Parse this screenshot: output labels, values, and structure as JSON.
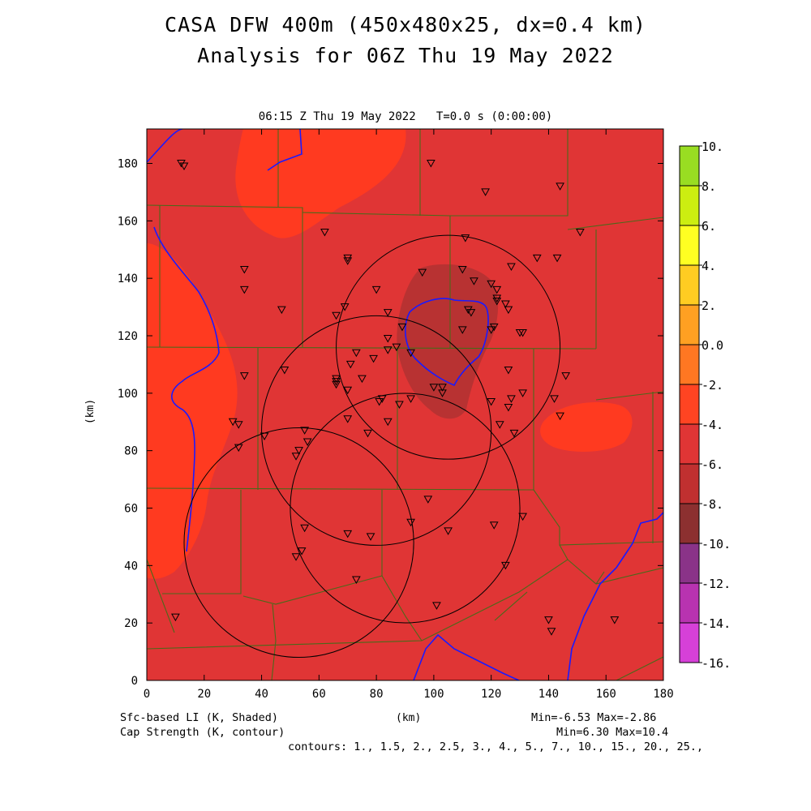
{
  "title_line1": "CASA DFW 400m (450x480x25, dx=0.4 km)",
  "title_line2": "Analysis for 06Z Thu 19 May 2022",
  "subtitle": "06:15 Z Thu 19 May 2022   T=0.0 s (0:00:00)",
  "x_axis_label": "(km)",
  "y_axis_label": "(km)",
  "x_ticks": [
    "0",
    "20",
    "40",
    "60",
    "80",
    "100",
    "120",
    "140",
    "160",
    "180"
  ],
  "y_ticks": [
    "0",
    "20",
    "40",
    "60",
    "80",
    "100",
    "120",
    "140",
    "160",
    "180"
  ],
  "footer": {
    "shaded_label": "Sfc-based LI (K, Shaded)",
    "contour_label": "Cap Strength (K, contour)",
    "shaded_range": "Min=-6.53 Max=-2.86",
    "contour_range": "Min=6.30 Max=10.4",
    "contours": "contours: 1., 1.5, 2., 2.5, 3., 4., 5., 7., 10., 15., 20., 25.,"
  },
  "colorbar": {
    "labels": [
      "10.",
      "8.",
      "6.",
      "4.",
      "2.",
      "0.0",
      "-2.",
      "-4.",
      "-6.",
      "-8.",
      "-10.",
      "-12.",
      "-14.",
      "-16."
    ],
    "colors": [
      "#99dd22",
      "#ccee11",
      "#ffff22",
      "#ffcc22",
      "#ffa022",
      "#ff7722",
      "#ff4422",
      "#e03535",
      "#c03030",
      "#8c3030",
      "#8a3388",
      "#b833b0",
      "#d640d8"
    ]
  },
  "map": {
    "x_range_km": [
      0,
      180
    ],
    "y_range_km": [
      0,
      192
    ],
    "background_color": "#e03535",
    "warm_region_color": "#ff3a20",
    "min_region_color": "#b83232",
    "county_line_color": "#4a6a1a",
    "river_color": "#1a1aff",
    "radar_rings_km": [
      {
        "cx": 105,
        "cy": 116,
        "r": 39
      },
      {
        "cx": 80,
        "cy": 87,
        "r": 40
      },
      {
        "cx": 90,
        "cy": 60,
        "r": 40
      },
      {
        "cx": 53,
        "cy": 48,
        "r": 40
      }
    ],
    "stations_km": [
      [
        12,
        180
      ],
      [
        13,
        179
      ],
      [
        99,
        180
      ],
      [
        118,
        170
      ],
      [
        144,
        172
      ],
      [
        151,
        156
      ],
      [
        62,
        156
      ],
      [
        111,
        154
      ],
      [
        70,
        147
      ],
      [
        70,
        146
      ],
      [
        34,
        143
      ],
      [
        34,
        136
      ],
      [
        110,
        143
      ],
      [
        96,
        142
      ],
      [
        127,
        144
      ],
      [
        136,
        147
      ],
      [
        143,
        147
      ],
      [
        114,
        139
      ],
      [
        120,
        138
      ],
      [
        122,
        136
      ],
      [
        122,
        133
      ],
      [
        122,
        132
      ],
      [
        80,
        136
      ],
      [
        69,
        130
      ],
      [
        47,
        129
      ],
      [
        66,
        127
      ],
      [
        84,
        128
      ],
      [
        112,
        129
      ],
      [
        113,
        128
      ],
      [
        125,
        131
      ],
      [
        126,
        129
      ],
      [
        110,
        122
      ],
      [
        120,
        122
      ],
      [
        121,
        123
      ],
      [
        130,
        121
      ],
      [
        131,
        121
      ],
      [
        89,
        123
      ],
      [
        84,
        119
      ],
      [
        87,
        116
      ],
      [
        84,
        115
      ],
      [
        92,
        114
      ],
      [
        79,
        112
      ],
      [
        73,
        114
      ],
      [
        34,
        106
      ],
      [
        48,
        108
      ],
      [
        66,
        105
      ],
      [
        66,
        103
      ],
      [
        71,
        110
      ],
      [
        66,
        104
      ],
      [
        70,
        101
      ],
      [
        75,
        105
      ],
      [
        100,
        102
      ],
      [
        103,
        102
      ],
      [
        103,
        100
      ],
      [
        82,
        98
      ],
      [
        81,
        97
      ],
      [
        92,
        98
      ],
      [
        88,
        96
      ],
      [
        126,
        108
      ],
      [
        131,
        100
      ],
      [
        127,
        98
      ],
      [
        126,
        95
      ],
      [
        120,
        97
      ],
      [
        142,
        98
      ],
      [
        146,
        106
      ],
      [
        144,
        92
      ],
      [
        30,
        90
      ],
      [
        32,
        89
      ],
      [
        32,
        81
      ],
      [
        70,
        91
      ],
      [
        77,
        86
      ],
      [
        84,
        90
      ],
      [
        123,
        89
      ],
      [
        128,
        86
      ],
      [
        41,
        85
      ],
      [
        55,
        87
      ],
      [
        56,
        83
      ],
      [
        53,
        80
      ],
      [
        52,
        78
      ],
      [
        98,
        63
      ],
      [
        92,
        55
      ],
      [
        55,
        53
      ],
      [
        70,
        51
      ],
      [
        78,
        50
      ],
      [
        105,
        52
      ],
      [
        121,
        54
      ],
      [
        131,
        57
      ],
      [
        52,
        43
      ],
      [
        54,
        45
      ],
      [
        73,
        35
      ],
      [
        101,
        26
      ],
      [
        125,
        40
      ],
      [
        10,
        22
      ],
      [
        140,
        21
      ],
      [
        141,
        17
      ],
      [
        163,
        21
      ]
    ]
  }
}
